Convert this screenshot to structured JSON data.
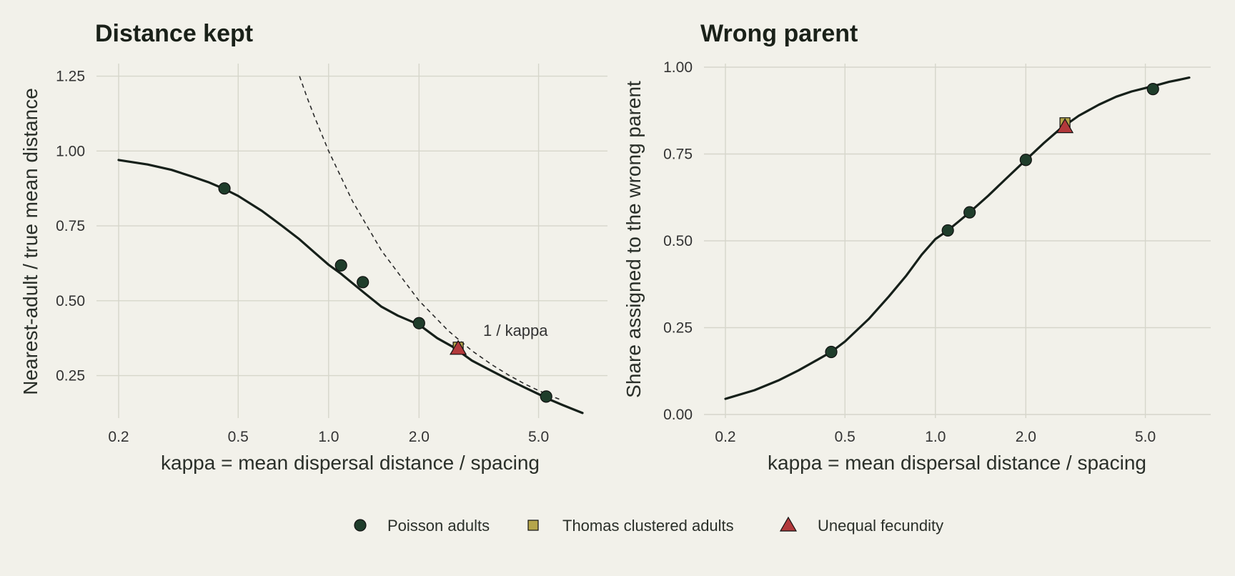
{
  "chart_data": [
    {
      "type": "line",
      "title": "Distance kept",
      "xlabel": "kappa = mean dispersal distance / spacing",
      "ylabel": "Nearest-adult / true mean distance",
      "x_scale": "log",
      "xlim": [
        0.2,
        7
      ],
      "ylim": [
        0.12,
        1.28
      ],
      "x_ticks": [
        0.2,
        0.5,
        1.0,
        2.0,
        5.0
      ],
      "x_tick_labels": [
        "0.2",
        "0.5",
        "1.0",
        "2.0",
        "5.0"
      ],
      "y_ticks": [
        0.25,
        0.5,
        0.75,
        1.0,
        1.25
      ],
      "y_tick_labels": [
        "0.25",
        "0.50",
        "0.75",
        "1.00",
        "1.25"
      ],
      "grid": true,
      "curve": {
        "x": [
          0.2,
          0.25,
          0.3,
          0.35,
          0.4,
          0.45,
          0.5,
          0.6,
          0.7,
          0.8,
          0.9,
          1.0,
          1.1,
          1.3,
          1.5,
          1.7,
          2.0,
          2.3,
          2.6,
          3.0,
          3.5,
          4.0,
          4.5,
          5.0,
          5.5,
          6.0,
          6.5,
          7.0
        ],
        "y": [
          0.97,
          0.955,
          0.937,
          0.915,
          0.895,
          0.873,
          0.85,
          0.8,
          0.75,
          0.705,
          0.66,
          0.62,
          0.59,
          0.53,
          0.48,
          0.45,
          0.42,
          0.375,
          0.345,
          0.3,
          0.265,
          0.235,
          0.21,
          0.188,
          0.168,
          0.152,
          0.138,
          0.125
        ]
      },
      "reference_curve": {
        "label": "1 / kappa",
        "x": [
          0.8,
          0.85,
          0.9,
          1.0,
          1.2,
          1.5,
          2.0,
          2.5,
          3.0,
          3.5,
          4.0,
          4.5,
          5.0,
          5.5,
          6.0
        ],
        "y": [
          1.25,
          1.176,
          1.111,
          1.0,
          0.833,
          0.667,
          0.5,
          0.4,
          0.333,
          0.286,
          0.25,
          0.222,
          0.2,
          0.182,
          0.167
        ]
      },
      "series": [
        {
          "name": "Poisson adults",
          "marker": "circle",
          "color": "#1f3d2b",
          "x": [
            0.45,
            1.1,
            1.3,
            2.0,
            5.3
          ],
          "y": [
            0.875,
            0.618,
            0.562,
            0.425,
            0.18
          ]
        },
        {
          "name": "Thomas clustered adults",
          "marker": "square",
          "color": "#b5a54a",
          "x": [
            2.7
          ],
          "y": [
            0.345
          ]
        },
        {
          "name": "Unequal fecundity",
          "marker": "triangle",
          "color": "#b2393b",
          "x": [
            2.7
          ],
          "y": [
            0.34
          ]
        }
      ]
    },
    {
      "type": "line",
      "title": "Wrong parent",
      "xlabel": "kappa = mean dispersal distance / spacing",
      "ylabel": "Share assigned to the wrong parent",
      "x_scale": "log",
      "xlim": [
        0.2,
        7
      ],
      "ylim": [
        0.0,
        1.0
      ],
      "x_ticks": [
        0.2,
        0.5,
        1.0,
        2.0,
        5.0
      ],
      "x_tick_labels": [
        "0.2",
        "0.5",
        "1.0",
        "2.0",
        "5.0"
      ],
      "y_ticks": [
        0.0,
        0.25,
        0.5,
        0.75,
        1.0
      ],
      "y_tick_labels": [
        "0.00",
        "0.25",
        "0.50",
        "0.75",
        "1.00"
      ],
      "grid": true,
      "curve": {
        "x": [
          0.2,
          0.25,
          0.3,
          0.35,
          0.4,
          0.45,
          0.5,
          0.6,
          0.7,
          0.8,
          0.9,
          1.0,
          1.1,
          1.2,
          1.3,
          1.5,
          1.7,
          2.0,
          2.3,
          2.6,
          3.0,
          3.5,
          4.0,
          4.5,
          5.0,
          5.5,
          6.0,
          6.5,
          7.0
        ],
        "y": [
          0.045,
          0.07,
          0.098,
          0.127,
          0.155,
          0.18,
          0.21,
          0.275,
          0.34,
          0.4,
          0.46,
          0.505,
          0.53,
          0.557,
          0.582,
          0.63,
          0.675,
          0.733,
          0.782,
          0.822,
          0.86,
          0.892,
          0.915,
          0.93,
          0.94,
          0.949,
          0.958,
          0.964,
          0.97
        ]
      },
      "series": [
        {
          "name": "Poisson adults",
          "marker": "circle",
          "color": "#1f3d2b",
          "x": [
            0.45,
            1.1,
            1.3,
            2.0,
            5.3
          ],
          "y": [
            0.18,
            0.53,
            0.582,
            0.733,
            0.937
          ]
        },
        {
          "name": "Thomas clustered adults",
          "marker": "square",
          "color": "#b5a54a",
          "x": [
            2.7
          ],
          "y": [
            0.84
          ]
        },
        {
          "name": "Unequal fecundity",
          "marker": "triangle",
          "color": "#b2393b",
          "x": [
            2.7
          ],
          "y": [
            0.828
          ]
        }
      ]
    }
  ],
  "legend": {
    "placement": "bottom",
    "items": [
      {
        "label": "Poisson adults",
        "marker": "circle",
        "color": "#1f3d2b"
      },
      {
        "label": "Thomas clustered adults",
        "marker": "square",
        "color": "#b5a54a"
      },
      {
        "label": "Unequal fecundity",
        "marker": "triangle",
        "color": "#b2393b"
      }
    ]
  },
  "colors": {
    "background": "#f2f1ea",
    "curve": "#16201a",
    "grid": "#d6d6cb"
  }
}
